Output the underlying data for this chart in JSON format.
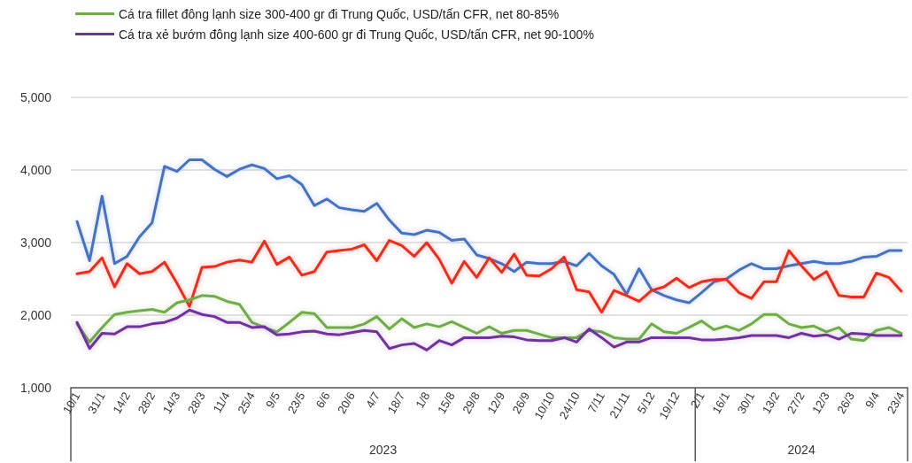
{
  "chart_data": {
    "type": "line",
    "categories": [
      "10/1",
      null,
      "31/1",
      null,
      "14/2",
      null,
      "28/2",
      null,
      "14/3",
      null,
      "28/3",
      null,
      "11/4",
      null,
      "25/4",
      null,
      "9/5",
      null,
      "23/5",
      null,
      "6/6",
      null,
      "20/6",
      null,
      "4/7",
      null,
      "18/7",
      null,
      "1/8",
      null,
      "15/8",
      null,
      "29/8",
      null,
      "12/9",
      null,
      "26/9",
      null,
      "10/10",
      null,
      "24/10",
      null,
      "7/11",
      null,
      "21/11",
      null,
      "5/12",
      null,
      "19/12",
      null,
      "2/1",
      null,
      "16/1",
      null,
      "30/1",
      null,
      "13/2",
      null,
      "27/2",
      null,
      "12/3",
      null,
      "26/3",
      null,
      "9/4",
      null,
      "23/4"
    ],
    "series": [
      {
        "color": "#4472c4",
        "values": [
          3290,
          2750,
          3640,
          2710,
          2810,
          3080,
          3270,
          4050,
          3980,
          4140,
          4140,
          4010,
          3910,
          4010,
          4070,
          4020,
          3880,
          3920,
          3800,
          3510,
          3600,
          3480,
          3450,
          3430,
          3540,
          3310,
          3130,
          3110,
          3170,
          3140,
          3030,
          3050,
          2830,
          2780,
          2710,
          2600,
          2730,
          2710,
          2710,
          2740,
          2680,
          2850,
          2680,
          2560,
          2290,
          2640,
          2350,
          2270,
          2210,
          2170,
          2310,
          2460,
          2500,
          2620,
          2710,
          2640,
          2640,
          2680,
          2710,
          2740,
          2710,
          2710,
          2740,
          2800,
          2810,
          2890,
          2890
        ]
      },
      {
        "color": "#f2291b",
        "values": [
          2570,
          2600,
          2790,
          2390,
          2710,
          2570,
          2600,
          2730,
          2440,
          2120,
          2660,
          2670,
          2730,
          2760,
          2730,
          3020,
          2700,
          2800,
          2550,
          2600,
          2870,
          2890,
          2910,
          2970,
          2750,
          3030,
          2960,
          2810,
          3000,
          2770,
          2440,
          2740,
          2520,
          2790,
          2590,
          2840,
          2550,
          2540,
          2640,
          2800,
          2350,
          2320,
          2040,
          2340,
          2270,
          2190,
          2340,
          2390,
          2510,
          2380,
          2460,
          2490,
          2490,
          2310,
          2230,
          2460,
          2460,
          2890,
          2680,
          2490,
          2600,
          2270,
          2250,
          2250,
          2580,
          2520,
          2330
        ]
      },
      {
        "name": "Cá tra fillet đông lạnh size 300-400 gr đi Trung Quốc, USD/tấn CFR, net 80-85%",
        "color": "#70ad47",
        "values": [
          1880,
          1630,
          1830,
          2010,
          2040,
          2060,
          2080,
          2040,
          2170,
          2210,
          2270,
          2260,
          2190,
          2150,
          1900,
          1830,
          1770,
          1900,
          2040,
          2020,
          1830,
          1830,
          1830,
          1880,
          1980,
          1810,
          1950,
          1830,
          1880,
          1840,
          1910,
          1830,
          1750,
          1840,
          1750,
          1790,
          1790,
          1740,
          1690,
          1690,
          1690,
          1790,
          1770,
          1690,
          1670,
          1670,
          1880,
          1770,
          1750,
          1830,
          1920,
          1800,
          1850,
          1790,
          1880,
          2010,
          2010,
          1880,
          1830,
          1850,
          1770,
          1830,
          1670,
          1650,
          1790,
          1830,
          1750
        ]
      },
      {
        "name": "Cá tra xẻ bướm đông lạnh size 400-600 gr đi Trung Quốc, USD/tấn CFR, net 90-100%",
        "color": "#7030a0",
        "values": [
          1900,
          1540,
          1750,
          1740,
          1840,
          1840,
          1880,
          1900,
          1960,
          2070,
          2010,
          1980,
          1900,
          1900,
          1830,
          1840,
          1730,
          1740,
          1770,
          1780,
          1740,
          1730,
          1760,
          1790,
          1770,
          1540,
          1590,
          1610,
          1520,
          1650,
          1590,
          1690,
          1690,
          1690,
          1710,
          1700,
          1660,
          1650,
          1650,
          1690,
          1630,
          1810,
          1690,
          1560,
          1630,
          1630,
          1690,
          1690,
          1690,
          1690,
          1660,
          1660,
          1670,
          1690,
          1720,
          1720,
          1720,
          1690,
          1750,
          1710,
          1730,
          1670,
          1750,
          1740,
          1720,
          1720,
          1720
        ]
      }
    ],
    "ylim": [
      1000,
      5000
    ],
    "yticks": [
      {
        "value": 1000,
        "label": "1,000"
      },
      {
        "value": 2000,
        "label": "2,000"
      },
      {
        "value": 3000,
        "label": "3,000"
      },
      {
        "value": 4000,
        "label": "4,000"
      },
      {
        "value": 5000,
        "label": "5,000"
      }
    ],
    "grid": "y",
    "legend": "top left",
    "annotations": [
      "2023",
      "2024"
    ]
  }
}
